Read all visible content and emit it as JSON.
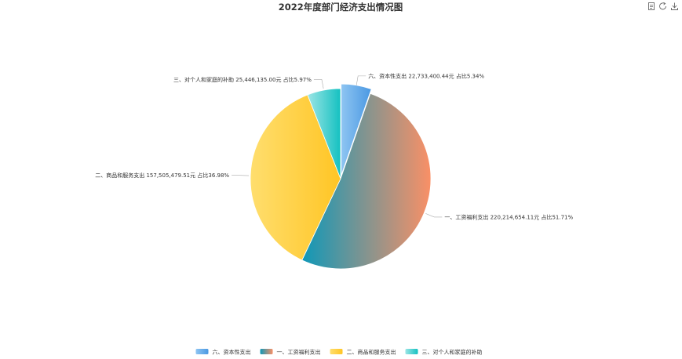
{
  "toolbox": {
    "icons": [
      "data-view-icon",
      "restore-icon",
      "save-as-image-icon"
    ]
  },
  "chart_data": {
    "type": "pie",
    "title": "2022年度部门经济支出情况图",
    "legend_position": "bottom-center",
    "slices": [
      {
        "name": "六、资本性支出",
        "value": 22733400.44,
        "percent": 5.34,
        "label": "六、资本性支出 22,733,400.44元 占比5.34%",
        "colors": [
          "#8ec5f2",
          "#4a98e2"
        ]
      },
      {
        "name": "一、工资福利支出",
        "value": 220214654.11,
        "percent": 51.71,
        "label": "一、工资福利支出 220,214,654.11元 占比51.71%",
        "colors": [
          "#0f98b8",
          "#fa9066"
        ]
      },
      {
        "name": "二、商品和服务支出",
        "value": 157505479.51,
        "percent": 36.98,
        "label": "二、商品和服务支出 157,505,479.51元 占比36.98%",
        "colors": [
          "#ffde6e",
          "#ffc524"
        ]
      },
      {
        "name": "三、对个人和家庭的补助",
        "value": 25446135.0,
        "percent": 5.97,
        "label": "三、对个人和家庭的补助 25,446,135.00元 占比5.97%",
        "colors": [
          "#9ce5e5",
          "#14c1c1"
        ]
      }
    ]
  }
}
